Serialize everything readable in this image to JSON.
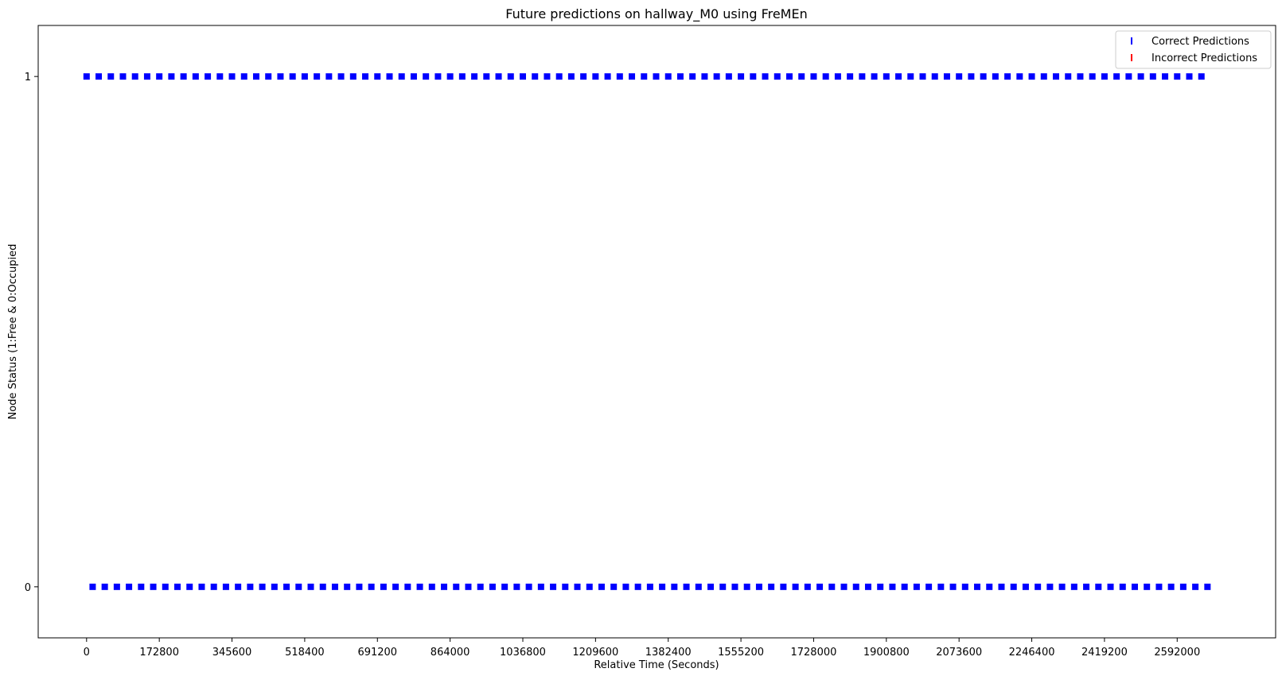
{
  "chart_data": {
    "type": "scatter",
    "title": "Future predictions on hallway_M0 using FreMEn",
    "xlabel": "Relative Time (Seconds)",
    "ylabel": "Node Status (1:Free & 0:Occupied",
    "xlim": [
      -115000,
      2826000
    ],
    "ylim": [
      -0.1,
      1.1
    ],
    "xticks": [
      0,
      172800,
      345600,
      518400,
      691200,
      864000,
      1036800,
      1209600,
      1382400,
      1555200,
      1728000,
      1900800,
      2073600,
      2246400,
      2419200,
      2592000
    ],
    "yticks": [
      0,
      1
    ],
    "grid": false,
    "legend": "upper-right",
    "series": [
      {
        "name": "Correct Predictions",
        "color": "#0000ff",
        "marker": "square",
        "points": [
          {
            "y": 1,
            "x_start": 0,
            "x_end": 2664000,
            "step": 28800
          },
          {
            "y": 0,
            "x_start": 14400,
            "x_end": 2678400,
            "step": 28800
          }
        ]
      },
      {
        "name": "Incorrect Predictions",
        "color": "#ff0000",
        "marker": "vline",
        "points": []
      }
    ]
  }
}
